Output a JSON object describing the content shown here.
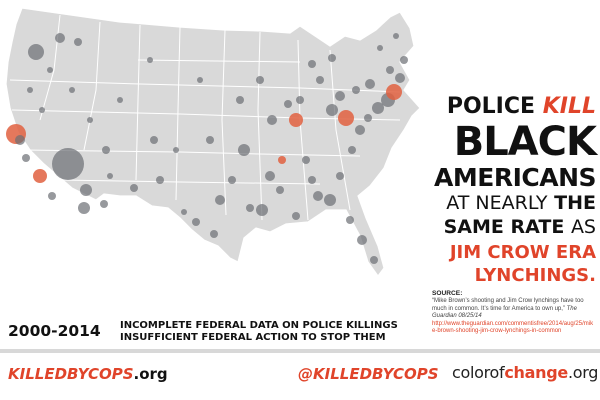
{
  "headline": {
    "line1_a": "POLICE",
    "line1_b": "KILL",
    "line2": "BLACK",
    "line3": "AMERICANS",
    "line4_a": "AT NEARLY",
    "line4_b": "THE",
    "line5_a": "SAME RATE",
    "line5_b": "AS",
    "line6": "JIM CROW ERA",
    "line7": "LYNCHINGS."
  },
  "source": {
    "label": "SOURCE:",
    "quote": "“Mike Brown’s shooting and Jim Crow lynchings have too much in common. It’s time for America to own up,”",
    "publication": "The Guardian 08/25/14",
    "link": "http://www.theguardian.com/commentisfree/2014/aug/25/mike-brown-shooting-jim-crow-lynchings-in-common"
  },
  "footer": {
    "years": "2000-2014",
    "claim1": "INCOMPLETE FEDERAL DATA ON POLICE KILLINGS",
    "claim2": "INSUFFICIENT FEDERAL ACTION TO STOP THEM",
    "logo_name": "KILLEDBYCOPS",
    "logo_tld": ".org",
    "twitter_handle": "@KILLEDBYCOPS",
    "coc_a": "colorof",
    "coc_b": "change",
    "coc_c": ".org"
  },
  "map": {
    "land_color": "#d9d9d9",
    "border_color": "#ffffff",
    "dot_color": "#6b6e73",
    "highlight_color": "#e0603f"
  }
}
